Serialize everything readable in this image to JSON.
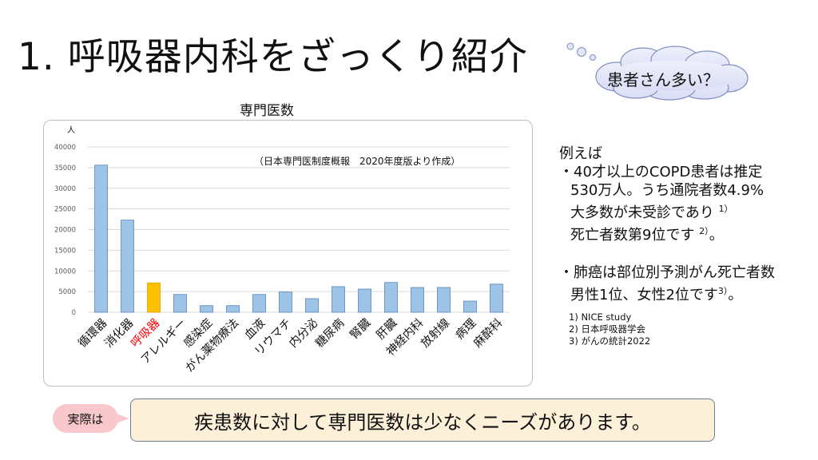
{
  "title": "1. 呼吸器内科をざっくり紹介",
  "cloud": {
    "text": "患者さん多い？"
  },
  "note": "（日本専門医制度概報　2020年度版より作成）",
  "side": {
    "intro": "例えば",
    "b1_l1": "・40才以上のCOPD患者は推定",
    "b1_l2": "530万人。うち通院者数4.9%",
    "b1_l3": "大多数が未受診であり",
    "b1_l3_sup": "1）",
    "b1_l4": "死亡者数第9位です",
    "b1_l4_sup": "2）",
    "b1_l4_end": "。",
    "b2_l1": "・肺癌は部位別予測がん死亡者数",
    "b2_l2": "男性1位、女性2位です",
    "b2_l2_sup": "3）",
    "b2_l2_end": "。"
  },
  "refs": [
    "1) NICE study",
    "2) 日本呼吸器学会",
    "3) がんの統計2022"
  ],
  "pill": "実際は",
  "conclusion": "疾患数に対して専門医数は少なくニーズがあります。",
  "colors": {
    "bar": "#9dc3e6",
    "highlight": "#ffc000",
    "highlight_label": "#ff0000"
  },
  "chart_data": {
    "type": "bar",
    "title": "専門医数",
    "ylabel": "人",
    "ylim": [
      0,
      40000
    ],
    "yticks": [
      0,
      5000,
      10000,
      15000,
      20000,
      25000,
      30000,
      35000,
      40000
    ],
    "categories": [
      "循環器",
      "消化器",
      "呼吸器",
      "アレルギー",
      "感染症",
      "がん薬物療法",
      "血液",
      "リウマチ",
      "内分泌",
      "糖尿病",
      "腎臓",
      "肝臓",
      "神経内科",
      "放射線",
      "病理",
      "麻酔科"
    ],
    "values": [
      35600,
      22300,
      7100,
      4300,
      1600,
      1600,
      4300,
      4900,
      3300,
      6200,
      5600,
      7200,
      6000,
      6000,
      2700,
      6800
    ],
    "highlight_index": 2,
    "grid": true
  }
}
